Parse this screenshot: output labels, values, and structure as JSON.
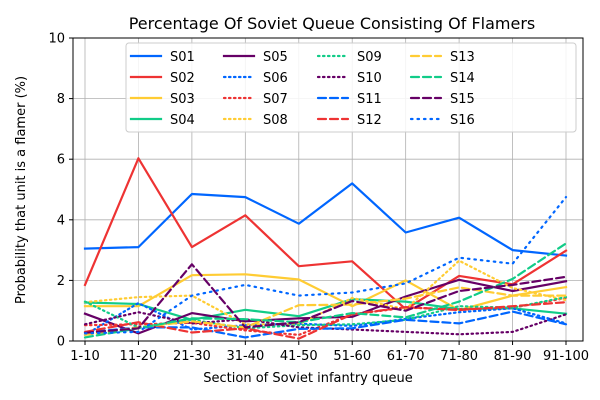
{
  "chart_data": {
    "type": "line",
    "title": "Percentage Of Soviet Queue Consisting Of Flamers",
    "xlabel": "Section of Soviet infantry queue",
    "ylabel": "Probability that unit is a flamer (%)",
    "categories": [
      "1-10",
      "11-20",
      "21-30",
      "31-40",
      "41-50",
      "51-60",
      "61-70",
      "71-80",
      "81-90",
      "91-100"
    ],
    "ylim": [
      0,
      10
    ],
    "yticks": [
      "0",
      "2",
      "4",
      "6",
      "8",
      "10"
    ],
    "grid": true,
    "legend": {
      "placement": "top-right",
      "columns": 5
    },
    "series": [
      {
        "name": "S01",
        "color": "#0066ff",
        "dash": "solid",
        "values": [
          3.05,
          3.1,
          4.85,
          4.75,
          3.87,
          5.2,
          3.58,
          4.07,
          3.0,
          2.82
        ]
      },
      {
        "name": "S02",
        "color": "#ee3333",
        "dash": "solid",
        "values": [
          1.85,
          6.03,
          3.1,
          4.15,
          2.47,
          2.63,
          1.05,
          2.15,
          1.87,
          2.98
        ]
      },
      {
        "name": "S03",
        "color": "#ffcc33",
        "dash": "solid",
        "values": [
          1.15,
          1.15,
          2.17,
          2.2,
          2.03,
          1.15,
          2.0,
          1.02,
          1.5,
          1.78
        ]
      },
      {
        "name": "S04",
        "color": "#11cc88",
        "dash": "solid",
        "values": [
          1.27,
          1.22,
          0.7,
          1.03,
          0.82,
          1.38,
          1.3,
          1.05,
          1.08,
          0.9
        ]
      },
      {
        "name": "S05",
        "color": "#660066",
        "dash": "solid",
        "values": [
          0.9,
          0.25,
          0.92,
          0.65,
          0.75,
          0.8,
          1.47,
          2.02,
          1.65,
          1.97
        ]
      },
      {
        "name": "S06",
        "color": "#0066ff",
        "dash": "dotted",
        "values": [
          0.2,
          1.25,
          0.38,
          0.52,
          0.57,
          0.5,
          0.73,
          0.95,
          1.08,
          0.58
        ]
      },
      {
        "name": "S07",
        "color": "#ee3333",
        "dash": "dotted",
        "values": [
          0.52,
          0.55,
          0.6,
          0.35,
          0.2,
          0.88,
          1.1,
          1.05,
          1.1,
          1.42
        ]
      },
      {
        "name": "S08",
        "color": "#ffcc33",
        "dash": "dotted",
        "values": [
          1.28,
          1.45,
          1.5,
          0.55,
          0.55,
          1.42,
          1.05,
          2.65,
          1.75,
          1.35
        ]
      },
      {
        "name": "S09",
        "color": "#11cc88",
        "dash": "dotted",
        "values": [
          1.3,
          0.45,
          0.7,
          0.42,
          0.52,
          0.55,
          0.7,
          1.15,
          1.1,
          1.45
        ]
      },
      {
        "name": "S10",
        "color": "#660066",
        "dash": "dotted",
        "values": [
          0.55,
          0.95,
          0.58,
          0.72,
          0.45,
          0.38,
          0.3,
          0.22,
          0.3,
          0.88
        ]
      },
      {
        "name": "S11",
        "color": "#0066ff",
        "dash": "dashed",
        "values": [
          0.28,
          0.45,
          0.45,
          0.12,
          0.4,
          0.42,
          0.7,
          0.58,
          0.97,
          0.55
        ]
      },
      {
        "name": "S12",
        "color": "#ee3333",
        "dash": "dashed",
        "values": [
          0.3,
          0.62,
          0.28,
          0.42,
          0.08,
          0.88,
          1.12,
          1.02,
          1.15,
          1.28
        ]
      },
      {
        "name": "S13",
        "color": "#ffcc33",
        "dash": "dashed",
        "values": [
          0.2,
          0.45,
          0.65,
          0.45,
          1.18,
          1.2,
          1.4,
          1.77,
          1.5,
          1.5
        ]
      },
      {
        "name": "S14",
        "color": "#11cc88",
        "dash": "dashed",
        "values": [
          0.12,
          0.42,
          0.75,
          0.72,
          0.62,
          0.92,
          0.78,
          1.3,
          2.05,
          3.22
        ]
      },
      {
        "name": "S15",
        "color": "#660066",
        "dash": "dashed",
        "values": [
          0.27,
          0.42,
          2.53,
          0.45,
          0.62,
          1.32,
          1.0,
          1.65,
          1.85,
          2.12
        ]
      },
      {
        "name": "S16",
        "color": "#0066ff",
        "dash": "dashdot",
        "values": [
          0.25,
          0.3,
          1.5,
          1.85,
          1.5,
          1.6,
          1.9,
          2.75,
          2.55,
          4.75
        ]
      }
    ]
  }
}
